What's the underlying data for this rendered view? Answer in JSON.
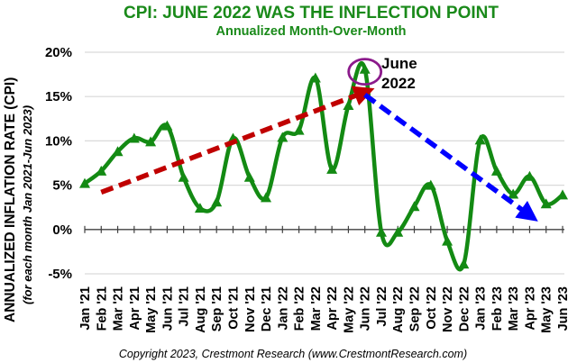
{
  "chart_data": {
    "type": "line",
    "title": "CPI: JUNE 2022 WAS THE INFLECTION POINT",
    "subtitle": "Annualized Month-Over-Month",
    "xlabel": "",
    "ylabel": "ANNUALIZED INFLATION RATE (CPI)",
    "ylabel_sub": "(for each month Jan 2021-Jun 2023)",
    "ylim": [
      -5,
      20
    ],
    "yticks": [
      -5,
      0,
      5,
      10,
      15,
      20
    ],
    "ytick_labels": [
      "-5%",
      "0%",
      "5%",
      "10%",
      "15%",
      "20%"
    ],
    "grid": true,
    "categories": [
      "Jan '21",
      "Feb '21",
      "Mar '21",
      "Apr '21",
      "May '21",
      "Jun '21",
      "Jul '21",
      "Aug '21",
      "Sep '21",
      "Oct '21",
      "Nov '21",
      "Dec '21",
      "Jan '22",
      "Feb '22",
      "Mar '22",
      "Apr '22",
      "May '22",
      "Jun '22",
      "Jul '22",
      "Aug '22",
      "Sep '22",
      "Oct '22",
      "Nov '22",
      "Dec '22",
      "Jan '23",
      "Feb '23",
      "Mar '23",
      "Apr '23",
      "May '23",
      "Jun '23"
    ],
    "series": [
      {
        "name": "Annualized CPI (month-over-month)",
        "color": "#138a13",
        "marker": "triangle",
        "smooth": true,
        "values": [
          5.2,
          6.6,
          8.8,
          10.3,
          9.9,
          11.7,
          5.9,
          2.4,
          3.1,
          10.3,
          5.9,
          3.6,
          10.4,
          11.2,
          17.1,
          6.8,
          14.0,
          18.1,
          -0.3,
          -0.3,
          2.6,
          5.0,
          -1.3,
          -3.9,
          10.1,
          6.6,
          4.0,
          6.0,
          2.9,
          3.9
        ]
      }
    ],
    "annotations": [
      {
        "type": "arrow",
        "name": "rising-trend",
        "style": "dashed",
        "color": "#c00000",
        "from": {
          "x": "Feb '21",
          "y": 4.2
        },
        "to": {
          "x": "Jun '22",
          "y": 15.5
        }
      },
      {
        "type": "arrow",
        "name": "falling-trend",
        "style": "dashed",
        "color": "#0000ff",
        "from": {
          "x": "Jun '22",
          "y": 15.2
        },
        "to": {
          "x": "Apr '23",
          "y": 1.6
        }
      },
      {
        "type": "ellipse",
        "name": "peak-highlight",
        "color": "#8b1a8b",
        "at": {
          "x": "Jun '22",
          "y": 17.8
        }
      },
      {
        "type": "text",
        "lines": [
          "June",
          "2022"
        ],
        "color": "#000000"
      }
    ]
  },
  "footer": {
    "copyright": "Copyright 2023, Crestmont Research (www.CrestmontResearch.com)"
  }
}
